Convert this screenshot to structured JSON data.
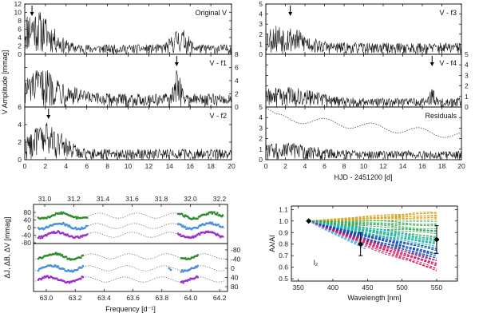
{
  "chart_data": [
    {
      "type": "line",
      "panel": "periodograms-left",
      "subpanels": [
        {
          "label": "Original V",
          "ylim": [
            0,
            12
          ],
          "y_ticks": [
            "0",
            "2",
            "4",
            "6",
            "8",
            "10",
            "12"
          ],
          "y_side": "left",
          "arrow_freq": 0.7
        },
        {
          "label": "V - f1",
          "ylim": [
            0,
            8
          ],
          "y_ticks": [
            "0",
            "2",
            "4",
            "6",
            "8"
          ],
          "y_side": "right",
          "arrow_freq": 14.7
        },
        {
          "label": "V - f2",
          "ylim": [
            0,
            6
          ],
          "y_ticks": [
            "0",
            "2",
            "4",
            "6"
          ],
          "y_side": "left",
          "arrow_freq": 2.3
        }
      ],
      "xlim": [
        0,
        20
      ],
      "x_ticks": [
        "0",
        "2",
        "4",
        "6",
        "8",
        "10",
        "12",
        "14",
        "16",
        "18",
        "20"
      ],
      "ylabel": "V Amplitude [mmag]"
    },
    {
      "type": "line",
      "panel": "periodograms-right",
      "subpanels": [
        {
          "label": "V - f3",
          "ylim": [
            0,
            5
          ],
          "y_ticks": [
            "0",
            "1",
            "2",
            "3",
            "4",
            "5"
          ],
          "y_side": "left",
          "arrow_freq": 2.5
        },
        {
          "label": "V - f4",
          "ylim": [
            0,
            5
          ],
          "y_ticks": [
            "0",
            "1",
            "2",
            "3",
            "4",
            "5"
          ],
          "y_side": "right",
          "arrow_freq": 17.0
        },
        {
          "label": "Residuals",
          "ylim": [
            0,
            5
          ],
          "y_ticks": [
            "0",
            "1",
            "2",
            "3",
            "4",
            "5"
          ],
          "y_side": "left",
          "arrow_freq": null
        }
      ],
      "xlim": [
        0,
        20
      ],
      "x_ticks": [
        "0",
        "2",
        "4",
        "6",
        "8",
        "10",
        "12",
        "14",
        "16",
        "18",
        "20"
      ],
      "xlabel": "HJD - 2451200 [d]"
    },
    {
      "type": "scatter",
      "panel": "light-curves",
      "top_axis_ticks": [
        "31.0",
        "31.2",
        "31.4",
        "31.6",
        "31.8",
        "32.0",
        "32.2"
      ],
      "bottom_axis_ticks": [
        "63.0",
        "63.2",
        "63.4",
        "63.6",
        "63.8",
        "64.0",
        "64.2"
      ],
      "xlabel": "Frequency [d⁻¹]",
      "left_ticks_top": [
        "80",
        "40",
        "0",
        "-40",
        "-80"
      ],
      "right_ticks_bottom": [
        "-80",
        "-40",
        "0",
        "40",
        "80"
      ],
      "ylabel": "ΔJ, ΔB, ΔV [mmag]",
      "series": [
        {
          "color": "#2e8b2e"
        },
        {
          "color": "#4a90d9"
        },
        {
          "color": "#9b30c8"
        }
      ]
    },
    {
      "type": "line",
      "panel": "amplitude-ratio",
      "xlabel": "Wavelength [nm]",
      "ylabel": "Aλ/AI",
      "x_ticks": [
        "350",
        "400",
        "450",
        "500",
        "550"
      ],
      "y_ticks": [
        "0.5",
        "0.6",
        "0.7",
        "0.8",
        "0.9",
        "1.0",
        "1.1"
      ],
      "xlim": [
        340,
        580
      ],
      "ylim": [
        0.48,
        1.13
      ],
      "annotation": "l₂",
      "model_colors": [
        "#d9a520",
        "#32a852",
        "#17bcd0",
        "#1f3fbf",
        "#d81b60",
        "#6fb0e8"
      ],
      "observed": [
        {
          "x": 365,
          "y": 1.0,
          "err": 0.0
        },
        {
          "x": 440,
          "y": 0.8,
          "err": 0.1
        },
        {
          "x": 550,
          "y": 0.84,
          "err": 0.12
        }
      ]
    }
  ]
}
